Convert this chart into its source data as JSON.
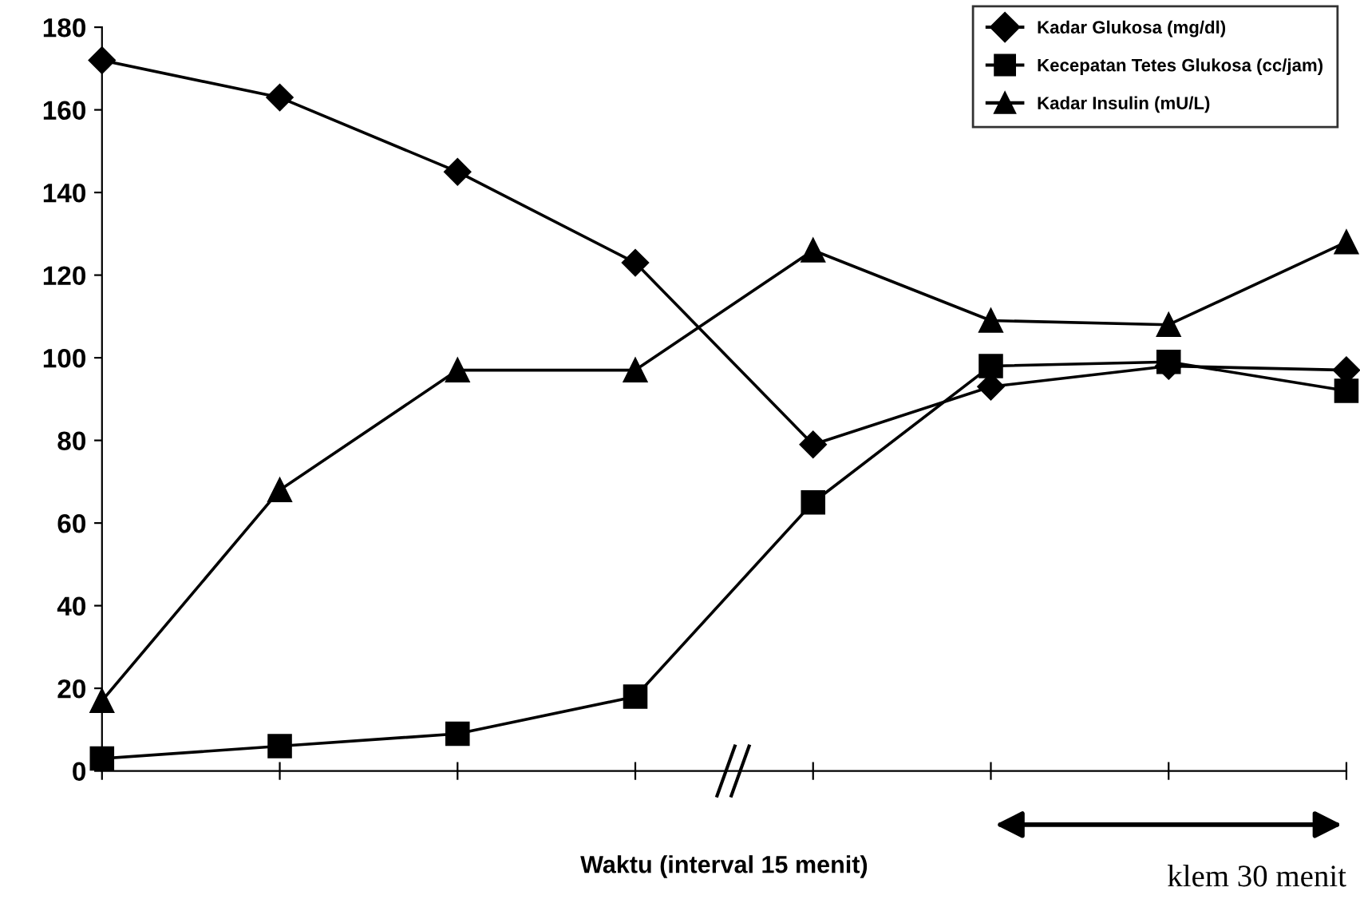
{
  "chart_data": {
    "type": "line",
    "xlabel": "Waktu (interval 15 menit)",
    "categories": [
      null,
      null,
      null,
      null,
      null,
      null,
      null,
      null
    ],
    "series": [
      {
        "name": "Kadar Glukosa (mg/dl)",
        "color": "#000000",
        "marker": "diamond",
        "values": [
          172,
          163,
          145,
          123,
          79,
          93,
          98,
          97
        ]
      },
      {
        "name": "Kecepatan Tetes Glukosa (cc/jam)",
        "color": "#000000",
        "marker": "square",
        "values": [
          3,
          6,
          9,
          18,
          65,
          98,
          99,
          92
        ]
      },
      {
        "name": "Kadar Insulin (mU/L)",
        "color": "#000000",
        "marker": "triangle",
        "values": [
          17,
          68,
          97,
          97,
          126,
          109,
          108,
          128
        ]
      }
    ],
    "ylim": [
      0,
      180
    ],
    "yticks": [
      0,
      20,
      40,
      60,
      80,
      100,
      120,
      140,
      160,
      180
    ],
    "tick_labels": "y",
    "legend": "top right",
    "grid": false,
    "line_style": "solid",
    "annotations": [
      "klem 30 menit"
    ]
  }
}
